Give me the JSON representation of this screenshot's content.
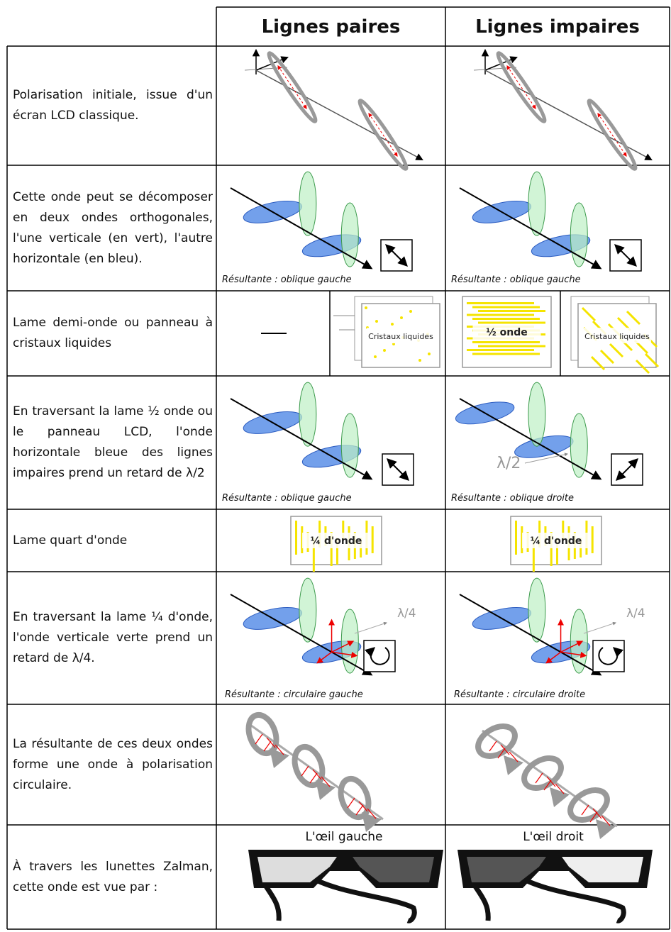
{
  "header": {
    "columns": [
      "Lignes paires",
      "Lignes impaires"
    ]
  },
  "rows": [
    {
      "label": "Polarisation initiale, issue d'un écran LCD classique."
    },
    {
      "label": "Cette onde peut se dé­composer en deux ondes orthogonales, l'une verti­cale (en vert), l'autre hori­zontale (en bleu).",
      "captions": [
        "Résultante : oblique gauche",
        "Résultante : oblique gauche"
      ]
    },
    {
      "label": "Lame demi-onde ou pan­neau à cristaux liquides",
      "panels": [
        "Cristaux liquides",
        "½ onde",
        "Cristaux liquides"
      ]
    },
    {
      "label": "En traversant la lame ½ onde ou le panneau LCD, l'onde horizontale bleue des lignes impaires prend un retard de λ/2",
      "captions": [
        "Résultante : oblique gauche",
        "Résultante : oblique droite"
      ],
      "retard": "λ/2"
    },
    {
      "label": "Lame quart d'onde",
      "panels": [
        "¼ d'onde",
        "¼ d'onde"
      ]
    },
    {
      "label": "En traversant la lame ¼ d'onde, l'onde verticale verte prend un retard de λ/4.",
      "captions": [
        "Résultante : circulaire gauche",
        "Résultante : circulaire droite"
      ],
      "retards": [
        "λ/4",
        "λ/4"
      ]
    },
    {
      "label": "La résultante de ces deux ondes forme une onde à polarisation circu­laire."
    },
    {
      "label": "À travers les lunettes Zalman, cette onde est vue par :",
      "eyes": [
        "L'œil gauche",
        "L'œil droit"
      ]
    }
  ]
}
